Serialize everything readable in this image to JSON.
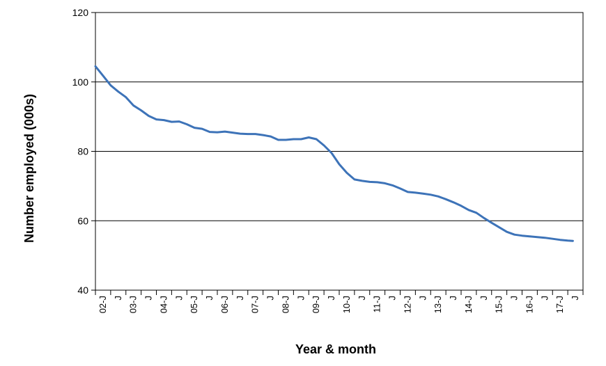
{
  "chart_data": {
    "type": "line",
    "title": "",
    "xlabel": "Year & month",
    "ylabel": "Number employed (000s)",
    "ylim": [
      40,
      120
    ],
    "yticks": [
      40,
      60,
      80,
      100,
      120
    ],
    "grid": "horizontal",
    "x_tick_labels": [
      "02-J",
      "J",
      "03-J",
      "J",
      "04-J",
      "J",
      "05-J",
      "J",
      "06-J",
      "J",
      "07-J",
      "J",
      "08-J",
      "J",
      "09-J",
      "J",
      "10-J",
      "J",
      "11-J",
      "J",
      "12-J",
      "J",
      "13-J",
      "J",
      "14-J",
      "J",
      "15-J",
      "J",
      "16-J",
      "J",
      "17-J",
      "J"
    ],
    "series": [
      {
        "color": "#3d73b8",
        "x": [
          "2002-01",
          "2002-04",
          "2002-07",
          "2002-10",
          "2003-01",
          "2003-04",
          "2003-07",
          "2003-10",
          "2004-01",
          "2004-04",
          "2004-07",
          "2004-10",
          "2005-01",
          "2005-04",
          "2005-07",
          "2005-10",
          "2006-01",
          "2006-04",
          "2006-07",
          "2006-10",
          "2007-01",
          "2007-04",
          "2007-07",
          "2007-10",
          "2008-01",
          "2008-04",
          "2008-07",
          "2008-10",
          "2009-01",
          "2009-04",
          "2009-07",
          "2009-10",
          "2010-01",
          "2010-04",
          "2010-07",
          "2010-10",
          "2011-01",
          "2011-04",
          "2011-07",
          "2011-10",
          "2012-01",
          "2012-04",
          "2012-07",
          "2012-10",
          "2013-01",
          "2013-04",
          "2013-07",
          "2013-10",
          "2014-01",
          "2014-04",
          "2014-07",
          "2014-10",
          "2015-01",
          "2015-04",
          "2015-07",
          "2015-10",
          "2016-01",
          "2016-04",
          "2016-07",
          "2016-10",
          "2017-01",
          "2017-04",
          "2017-07",
          "2017-09"
        ],
        "values": [
          104.5,
          101.8,
          99.0,
          97.2,
          95.6,
          93.2,
          91.8,
          90.2,
          89.2,
          89.0,
          88.5,
          88.6,
          87.8,
          86.8,
          86.5,
          85.6,
          85.5,
          85.7,
          85.4,
          85.1,
          85.0,
          85.0,
          84.7,
          84.3,
          83.3,
          83.3,
          83.5,
          83.5,
          84.0,
          83.5,
          81.7,
          79.5,
          76.3,
          73.8,
          71.9,
          71.5,
          71.2,
          71.1,
          70.8,
          70.2,
          69.3,
          68.3,
          68.1,
          67.8,
          67.5,
          67.0,
          66.2,
          65.3,
          64.3,
          63.1,
          62.3,
          60.8,
          59.4,
          58.1,
          56.8,
          56.0,
          55.7,
          55.5,
          55.3,
          55.1,
          54.8,
          54.5,
          54.3,
          54.2
        ]
      }
    ]
  }
}
